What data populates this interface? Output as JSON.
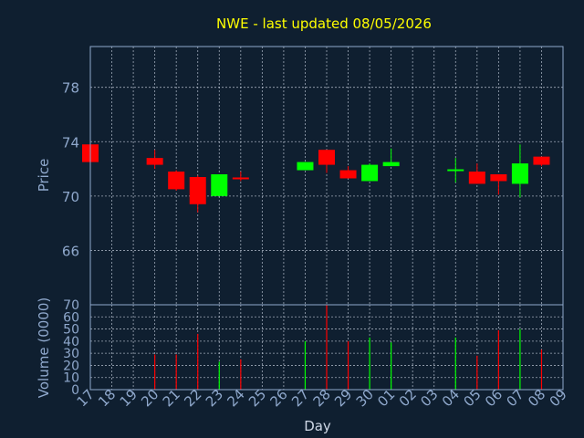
{
  "title": "NWE - last updated 08/05/2026",
  "colors": {
    "background": "#0f1f30",
    "title": "#ffff00",
    "axis_text": "#8fa8cc",
    "grid": "#cfd8e6",
    "frame": "#8fa8cc",
    "up": "#00ff00",
    "down": "#ff0000"
  },
  "chart_data": [
    {
      "type": "candlestick",
      "xlabel": "",
      "ylabel": "Price",
      "ylim": [
        62,
        81
      ],
      "yticks": [
        66,
        70,
        74,
        78
      ],
      "grid": true,
      "categories": [
        "17",
        "18",
        "19",
        "20",
        "21",
        "22",
        "23",
        "24",
        "25",
        "26",
        "27",
        "28",
        "29",
        "30",
        "01",
        "02",
        "03",
        "04",
        "05",
        "06",
        "07",
        "08",
        "09"
      ],
      "candles": [
        {
          "x": "17",
          "open": 73.8,
          "high": 73.9,
          "low": 72.4,
          "close": 72.5
        },
        {
          "x": "20",
          "open": 72.8,
          "high": 73.4,
          "low": 72.0,
          "close": 72.3
        },
        {
          "x": "21",
          "open": 71.8,
          "high": 71.9,
          "low": 70.4,
          "close": 70.5
        },
        {
          "x": "22",
          "open": 71.4,
          "high": 71.5,
          "low": 68.8,
          "close": 69.4
        },
        {
          "x": "23",
          "open": 70.0,
          "high": 71.6,
          "low": 70.0,
          "close": 71.6
        },
        {
          "x": "24",
          "open": 71.3,
          "high": 71.8,
          "low": 71.1,
          "close": 71.2
        },
        {
          "x": "27",
          "open": 71.9,
          "high": 72.5,
          "low": 71.9,
          "close": 72.5
        },
        {
          "x": "28",
          "open": 73.4,
          "high": 73.4,
          "low": 71.7,
          "close": 72.3
        },
        {
          "x": "29",
          "open": 71.9,
          "high": 72.2,
          "low": 71.3,
          "close": 71.3
        },
        {
          "x": "30",
          "open": 71.1,
          "high": 72.4,
          "low": 71.1,
          "close": 72.3
        },
        {
          "x": "01",
          "open": 72.2,
          "high": 73.5,
          "low": 72.2,
          "close": 72.5
        },
        {
          "x": "04",
          "open": 71.8,
          "high": 72.8,
          "low": 71.0,
          "close": 71.9
        },
        {
          "x": "05",
          "open": 71.8,
          "high": 72.4,
          "low": 70.9,
          "close": 70.9
        },
        {
          "x": "06",
          "open": 71.6,
          "high": 71.6,
          "low": 70.1,
          "close": 71.1
        },
        {
          "x": "07",
          "open": 70.9,
          "high": 73.8,
          "low": 69.9,
          "close": 72.4
        },
        {
          "x": "08",
          "open": 72.9,
          "high": 72.9,
          "low": 72.2,
          "close": 72.3
        }
      ]
    },
    {
      "type": "bar",
      "xlabel": "Day",
      "ylabel": "Volume (0000)",
      "ylim": [
        0,
        70
      ],
      "yticks": [
        0,
        10,
        20,
        30,
        40,
        50,
        60,
        70
      ],
      "grid": true,
      "categories": [
        "17",
        "18",
        "19",
        "20",
        "21",
        "22",
        "23",
        "24",
        "25",
        "26",
        "27",
        "28",
        "29",
        "30",
        "01",
        "02",
        "03",
        "04",
        "05",
        "06",
        "07",
        "08",
        "09"
      ],
      "bars": [
        {
          "x": "20",
          "value": 29,
          "dir": "down"
        },
        {
          "x": "21",
          "value": 29,
          "dir": "down"
        },
        {
          "x": "22",
          "value": 46,
          "dir": "down"
        },
        {
          "x": "23",
          "value": 23,
          "dir": "up"
        },
        {
          "x": "24",
          "value": 25,
          "dir": "down"
        },
        {
          "x": "27",
          "value": 40,
          "dir": "up"
        },
        {
          "x": "28",
          "value": 70,
          "dir": "down"
        },
        {
          "x": "29",
          "value": 40,
          "dir": "down"
        },
        {
          "x": "30",
          "value": 43,
          "dir": "up"
        },
        {
          "x": "01",
          "value": 39,
          "dir": "up"
        },
        {
          "x": "04",
          "value": 43,
          "dir": "up"
        },
        {
          "x": "05",
          "value": 28,
          "dir": "down"
        },
        {
          "x": "06",
          "value": 49,
          "dir": "down"
        },
        {
          "x": "07",
          "value": 50,
          "dir": "up"
        },
        {
          "x": "08",
          "value": 33,
          "dir": "down"
        }
      ]
    }
  ]
}
